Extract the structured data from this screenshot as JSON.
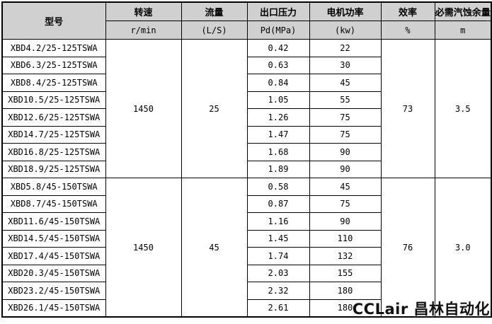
{
  "table": {
    "header": {
      "model_label": "型号",
      "columns": [
        {
          "label": "转速",
          "unit": "r/min"
        },
        {
          "label": "流量",
          "unit": "(L/S)"
        },
        {
          "label": "出口压力",
          "unit": "Pd(MPa)"
        },
        {
          "label": "电机功率",
          "unit": "(kw)"
        },
        {
          "label": "效率",
          "unit": "%"
        },
        {
          "label": "必需汽蚀余量",
          "unit": "m"
        }
      ]
    },
    "groups": [
      {
        "speed": "1450",
        "flow": "25",
        "efficiency": "73",
        "npsh": "3.5",
        "rows": [
          {
            "model": "XBD4.2/25-125TSWA",
            "pressure": "0.42",
            "power": "22"
          },
          {
            "model": "XBD6.3/25-125TSWA",
            "pressure": "0.63",
            "power": "30"
          },
          {
            "model": "XBD8.4/25-125TSWA",
            "pressure": "0.84",
            "power": "45"
          },
          {
            "model": "XBD10.5/25-125TSWA",
            "pressure": "1.05",
            "power": "55"
          },
          {
            "model": "XBD12.6/25-125TSWA",
            "pressure": "1.26",
            "power": "75"
          },
          {
            "model": "XBD14.7/25-125TSWA",
            "pressure": "1.47",
            "power": "75"
          },
          {
            "model": "XBD16.8/25-125TSWA",
            "pressure": "1.68",
            "power": "90"
          },
          {
            "model": "XBD18.9/25-125TSWA",
            "pressure": "1.89",
            "power": "90"
          }
        ]
      },
      {
        "speed": "1450",
        "flow": "45",
        "efficiency": "76",
        "npsh": "3.0",
        "rows": [
          {
            "model": "XBD5.8/45-150TSWA",
            "pressure": "0.58",
            "power": "45"
          },
          {
            "model": "XBD8.7/45-150TSWA",
            "pressure": "0.87",
            "power": "75"
          },
          {
            "model": "XBD11.6/45-150TSWA",
            "pressure": "1.16",
            "power": "90"
          },
          {
            "model": "XBD14.5/45-150TSWA",
            "pressure": "1.45",
            "power": "110"
          },
          {
            "model": "XBD17.4/45-150TSWA",
            "pressure": "1.74",
            "power": "132"
          },
          {
            "model": "XBD20.3/45-150TSWA",
            "pressure": "2.03",
            "power": "155"
          },
          {
            "model": "XBD23.2/45-150TSWA",
            "pressure": "2.32",
            "power": "180"
          },
          {
            "model": "XBD26.1/45-150TSWA",
            "pressure": "2.61",
            "power": "180"
          }
        ]
      }
    ]
  },
  "watermark": {
    "text": "CCLair 昌林自动化"
  },
  "colors": {
    "header_bg": "#d0d0d0",
    "border": "#000000",
    "body_bg": "#ffffff",
    "text": "#000000"
  }
}
